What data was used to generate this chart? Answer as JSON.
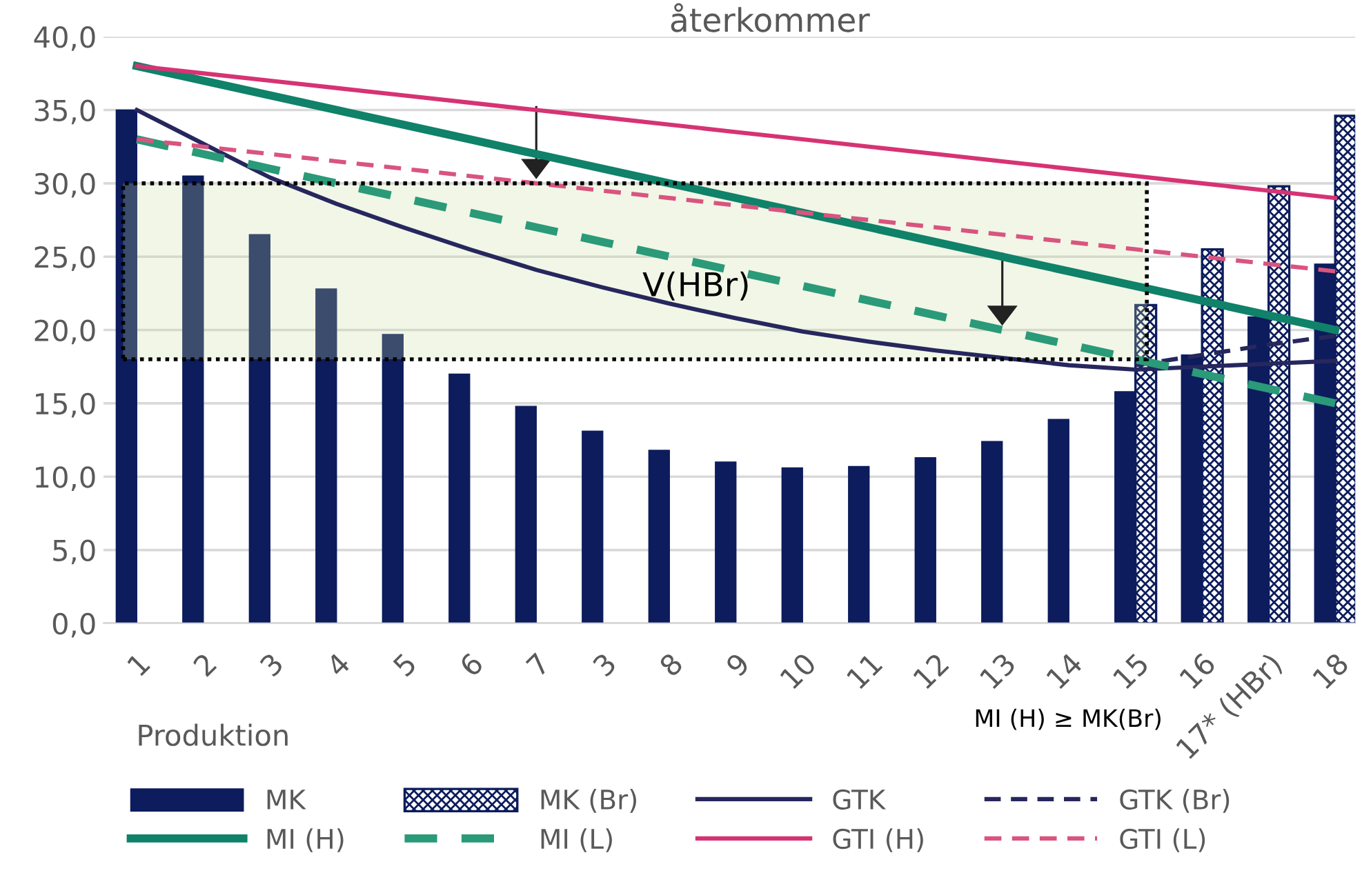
{
  "chart_data": {
    "type": "bar",
    "title": "återkommer",
    "categories": [
      "1",
      "2",
      "3",
      "4",
      "5",
      "6",
      "7",
      "3",
      "8",
      "9",
      "10",
      "11",
      "12",
      "13",
      "14",
      "15",
      "16",
      "17* (HBr)",
      "18"
    ],
    "series": [
      {
        "name": "MK",
        "color": "#0c1c5c",
        "values": [
          35,
          30.5,
          26.5,
          22.8,
          19.7,
          17,
          14.8,
          13.1,
          11.8,
          11,
          10.6,
          10.7,
          11.3,
          12.4,
          13.9,
          15.8,
          18.3,
          20.9,
          24.5
        ]
      },
      {
        "name": "MK (Br)",
        "color": "#0c1c5c",
        "values": [
          null,
          null,
          null,
          null,
          null,
          null,
          null,
          null,
          null,
          null,
          null,
          null,
          null,
          null,
          null,
          21.7,
          25.5,
          29.8,
          34.6
        ]
      },
      {
        "name": "GTK",
        "type": "line",
        "line_style": "solid",
        "color": "#27275e",
        "values": [
          35,
          32.7,
          30.4,
          28.6,
          27,
          25.5,
          24.1,
          22.9,
          21.8,
          20.8,
          19.9,
          19.2,
          18.6,
          18.1,
          17.6,
          17.3,
          17.5,
          17.7,
          17.9
        ]
      },
      {
        "name": "GTK (Br)",
        "type": "line",
        "line_style": "dashed",
        "color": "#27275e",
        "values": [
          null,
          null,
          null,
          null,
          null,
          null,
          null,
          null,
          null,
          null,
          null,
          null,
          null,
          null,
          null,
          17.6,
          18.3,
          19,
          19.6
        ]
      },
      {
        "name": "MI (H)",
        "type": "line",
        "line_style": "solid",
        "color": "#0f8269",
        "values": [
          38,
          37,
          36,
          35,
          34,
          33,
          32,
          31,
          30,
          29,
          28,
          27,
          26,
          25,
          24,
          23,
          22,
          21,
          20
        ]
      },
      {
        "name": "MI (L)",
        "type": "line",
        "line_style": "dashed",
        "color": "#2a9a78",
        "values": [
          33,
          32,
          31,
          30,
          29,
          28,
          27,
          26,
          25,
          24,
          23,
          22,
          21,
          20,
          19,
          18,
          17,
          16,
          15
        ]
      },
      {
        "name": "GTI (H)",
        "type": "line",
        "line_style": "solid",
        "color": "#d63374",
        "values": [
          38,
          37.5,
          37,
          36.5,
          36,
          35.5,
          35,
          34.5,
          34,
          33.5,
          33,
          32.5,
          32,
          31.5,
          31,
          30.5,
          30,
          29.5,
          29
        ]
      },
      {
        "name": "GTI (L)",
        "type": "line",
        "line_style": "dashed",
        "color": "#d9547f",
        "values": [
          33,
          32.5,
          32,
          31.5,
          31,
          30.5,
          30,
          29.5,
          29,
          28.5,
          28,
          27.5,
          27,
          26.5,
          26,
          25.5,
          25,
          24.5,
          24
        ]
      }
    ],
    "bands": [
      {
        "axis": "y",
        "from": 18,
        "to": 30,
        "label": "V(HBr)",
        "color": "#c8dba0"
      }
    ],
    "annotations": [
      "Produktion",
      "MI (H) ≥ MK(Br)"
    ],
    "ylim": [
      0,
      40
    ],
    "yticks": [
      {
        "value": 0,
        "label": "0,0"
      },
      {
        "value": 5,
        "label": "5,0"
      },
      {
        "value": 10,
        "label": "10,0"
      },
      {
        "value": 15,
        "label": "15,0"
      },
      {
        "value": 20,
        "label": "20,0"
      },
      {
        "value": 25,
        "label": "25,0"
      },
      {
        "value": 30,
        "label": "30,0"
      },
      {
        "value": 35,
        "label": "35,0"
      },
      {
        "value": 40,
        "label": "40,0"
      }
    ],
    "grid": "y",
    "legend": "bottom"
  }
}
